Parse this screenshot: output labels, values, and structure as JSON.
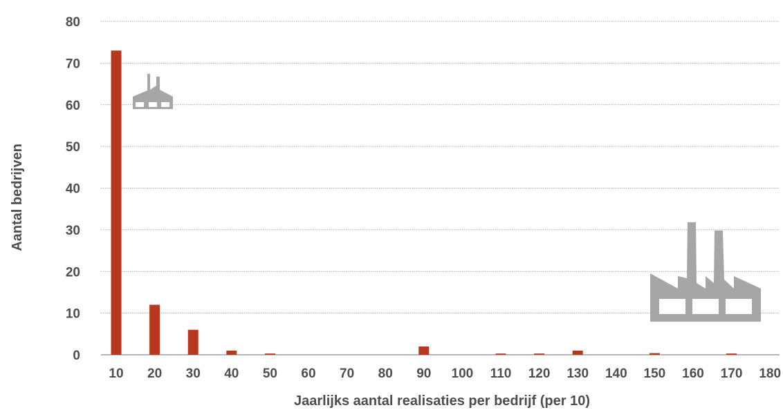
{
  "chart_data": {
    "type": "bar",
    "title": "",
    "xlabel": "Jaarlijks aantal realisaties per bedrijf (per 10)",
    "ylabel": "Aantal bedrijven",
    "categories": [
      "10",
      "20",
      "30",
      "40",
      "50",
      "60",
      "70",
      "80",
      "90",
      "100",
      "110",
      "120",
      "130",
      "140",
      "150",
      "160",
      "170",
      "180"
    ],
    "values": [
      73,
      12,
      6,
      1,
      0.3,
      0,
      0,
      0,
      2,
      0,
      0.3,
      0.3,
      1,
      0,
      0.4,
      0,
      0.3,
      0
    ],
    "ylim": [
      0,
      80
    ],
    "yticks": [
      "0",
      "10",
      "20",
      "30",
      "40",
      "50",
      "60",
      "70",
      "80"
    ],
    "grid": true,
    "legend": "none",
    "colors": {
      "bar": "#b8371f",
      "grid": "#8c8c8c",
      "text": "#4d4d4d",
      "icon": "#a6a6a6"
    },
    "icons": [
      "small-factory-icon",
      "large-factory-icon"
    ]
  }
}
